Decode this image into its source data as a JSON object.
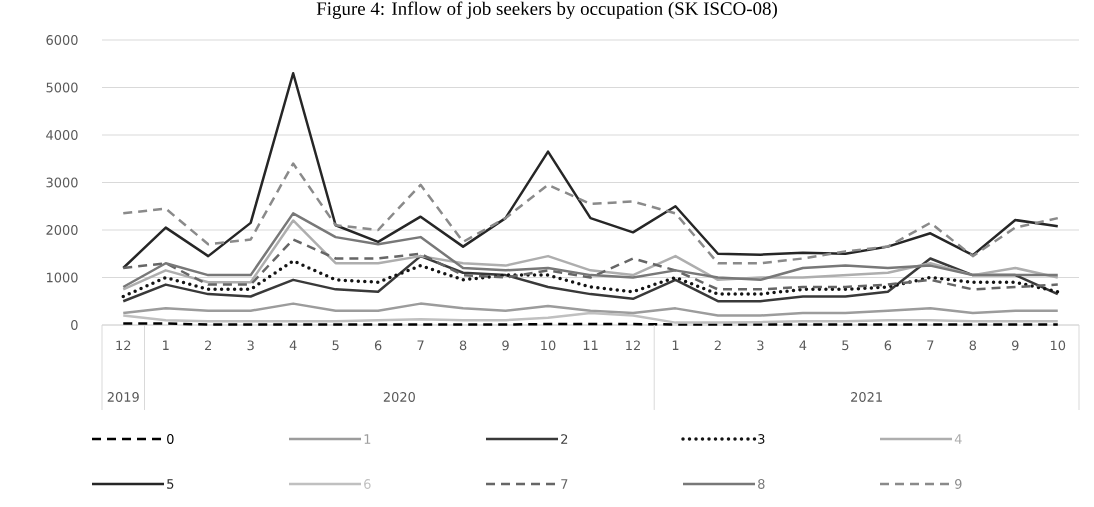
{
  "chart_data": {
    "type": "line",
    "title": "Figure 4: Inflow of job seekers by occupation (SK ISCO-08)",
    "x": [
      "2019-12",
      "2020-01",
      "2020-02",
      "2020-03",
      "2020-04",
      "2020-05",
      "2020-06",
      "2020-07",
      "2020-08",
      "2020-09",
      "2020-10",
      "2020-11",
      "2020-12",
      "2021-01",
      "2021-02",
      "2021-03",
      "2021-04",
      "2021-05",
      "2021-06",
      "2021-07",
      "2021-08",
      "2021-09",
      "2021-10"
    ],
    "xticks": [
      {
        "value": "2019-12",
        "label": "12"
      },
      {
        "value": "2020-01",
        "label": "1"
      },
      {
        "value": "2020-02",
        "label": "2"
      },
      {
        "value": "2020-03",
        "label": "3"
      },
      {
        "value": "2020-04",
        "label": "4"
      },
      {
        "value": "2020-05",
        "label": "5"
      },
      {
        "value": "2020-06",
        "label": "6"
      },
      {
        "value": "2020-07",
        "label": "7"
      },
      {
        "value": "2020-08",
        "label": "8"
      },
      {
        "value": "2020-09",
        "label": "9"
      },
      {
        "value": "2020-10",
        "label": "10"
      },
      {
        "value": "2020-11",
        "label": "11"
      },
      {
        "value": "2020-12",
        "label": "12"
      },
      {
        "value": "2021-01",
        "label": "1"
      },
      {
        "value": "2021-02",
        "label": "2"
      },
      {
        "value": "2021-03",
        "label": "3"
      },
      {
        "value": "2021-04",
        "label": "4"
      },
      {
        "value": "2021-05",
        "label": "5"
      },
      {
        "value": "2021-06",
        "label": "6"
      },
      {
        "value": "2021-07",
        "label": "7"
      },
      {
        "value": "2021-08",
        "label": "8"
      },
      {
        "value": "2021-09",
        "label": "9"
      },
      {
        "value": "2021-10",
        "label": "10"
      }
    ],
    "annotations": [
      "2019",
      "2020",
      "2021"
    ],
    "xlim": [
      "2019-11-16",
      "2021-10-16"
    ],
    "ylim": [
      0,
      6000
    ],
    "yticks": [
      0,
      1000,
      2000,
      3000,
      4000,
      5000,
      6000
    ],
    "grid": "y",
    "legend": "bottom",
    "marker": "none",
    "series": [
      {
        "name": "0",
        "color": "#000000",
        "line_style": "dashed",
        "values": [
          30,
          30,
          10,
          10,
          10,
          10,
          10,
          10,
          10,
          10,
          20,
          20,
          20,
          10,
          10,
          10,
          10,
          10,
          10,
          10,
          10,
          10,
          10
        ]
      },
      {
        "name": "1",
        "color": "#9c9c9c",
        "line_style": "solid",
        "values": [
          250,
          350,
          300,
          300,
          450,
          300,
          300,
          450,
          350,
          300,
          400,
          300,
          250,
          350,
          200,
          200,
          250,
          250,
          300,
          350,
          250,
          300,
          300
        ]
      },
      {
        "name": "2",
        "color": "#393939",
        "line_style": "solid",
        "values": [
          500,
          850,
          650,
          600,
          950,
          750,
          700,
          1450,
          1100,
          1050,
          800,
          650,
          550,
          950,
          500,
          500,
          600,
          600,
          700,
          1400,
          1050,
          1050,
          650
        ]
      },
      {
        "name": "3",
        "color": "#131313",
        "line_style": "dotted",
        "values": [
          600,
          1000,
          750,
          750,
          1350,
          950,
          900,
          1250,
          950,
          1050,
          1050,
          800,
          700,
          1000,
          650,
          650,
          750,
          750,
          800,
          1000,
          900,
          900,
          700
        ]
      },
      {
        "name": "4",
        "color": "#aeaeae",
        "line_style": "solid",
        "values": [
          750,
          1150,
          900,
          900,
          2200,
          1300,
          1300,
          1450,
          1300,
          1250,
          1450,
          1150,
          1050,
          1450,
          950,
          1000,
          1000,
          1050,
          1100,
          1300,
          1050,
          1200,
          1000
        ]
      },
      {
        "name": "5",
        "color": "#262626",
        "line_style": "solid",
        "values": [
          1200,
          2050,
          1450,
          2150,
          5300,
          2100,
          1750,
          2280,
          1650,
          2250,
          3650,
          2250,
          1950,
          2500,
          1500,
          1480,
          1520,
          1500,
          1650,
          1930,
          1470,
          2210,
          2080
        ]
      },
      {
        "name": "6",
        "color": "#c0c0c0",
        "line_style": "solid",
        "values": [
          200,
          100,
          80,
          80,
          80,
          80,
          100,
          120,
          100,
          100,
          150,
          250,
          200,
          50,
          50,
          60,
          80,
          80,
          100,
          100,
          80,
          80,
          80
        ]
      },
      {
        "name": "7",
        "color": "#666666",
        "line_style": "dashed",
        "values": [
          1200,
          1300,
          850,
          850,
          1800,
          1400,
          1400,
          1500,
          1050,
          1000,
          1150,
          1000,
          1400,
          1150,
          750,
          750,
          800,
          800,
          850,
          950,
          750,
          800,
          850
        ]
      },
      {
        "name": "8",
        "color": "#787878",
        "line_style": "solid",
        "values": [
          800,
          1300,
          1050,
          1050,
          2350,
          1850,
          1700,
          1850,
          1200,
          1150,
          1200,
          1050,
          1000,
          1150,
          1000,
          950,
          1200,
          1250,
          1200,
          1250,
          1050,
          1050,
          1050
        ]
      },
      {
        "name": "9",
        "color": "#8a8a8a",
        "line_style": "dashed",
        "values": [
          2350,
          2450,
          1700,
          1800,
          3400,
          2100,
          2000,
          2950,
          1750,
          2250,
          2950,
          2550,
          2600,
          2350,
          1300,
          1300,
          1400,
          1550,
          1650,
          2150,
          1450,
          2050,
          2250
        ]
      }
    ]
  }
}
